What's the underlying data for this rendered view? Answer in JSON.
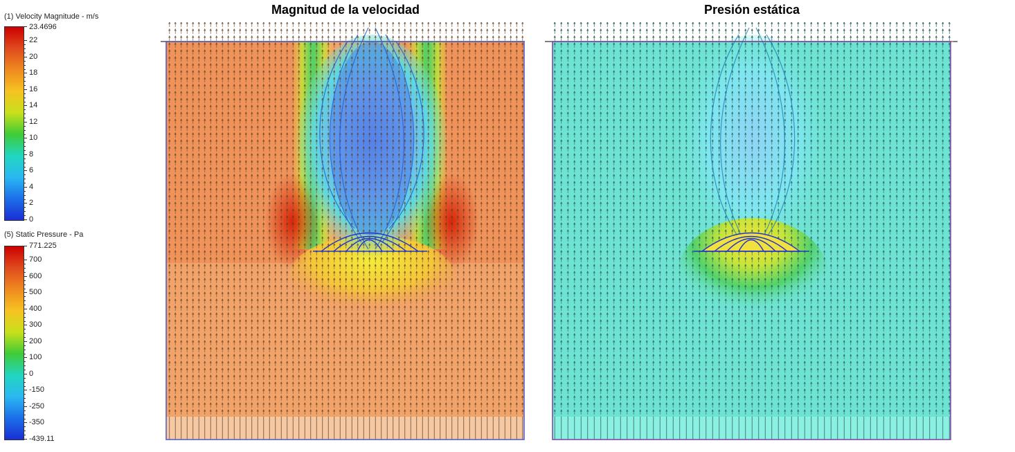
{
  "legends": [
    {
      "title": "(1) Velocity Magnitude - m/s",
      "max_label": "23.4696",
      "labels": [
        "22",
        "20",
        "18",
        "16",
        "14",
        "12",
        "10",
        "8",
        "6",
        "4",
        "2",
        "0"
      ],
      "gradient": [
        "#cc0000",
        "#e04b1e",
        "#ef8a1f",
        "#f6c322",
        "#c8e01c",
        "#3fcb36",
        "#22d6c0",
        "#2ab8f2",
        "#1c6fe8",
        "#1a2fd4"
      ]
    },
    {
      "title": "(5) Static Pressure - Pa",
      "max_label": "771.225",
      "labels": [
        "700",
        "600",
        "500",
        "400",
        "300",
        "200",
        "100",
        "0",
        "-150",
        "-250",
        "-350",
        "-439.11"
      ],
      "gradient": [
        "#cc0000",
        "#e04b1e",
        "#ef8a1f",
        "#f6c322",
        "#c8e01c",
        "#3fcb36",
        "#22d6c0",
        "#2ab8f2",
        "#1c6fe8",
        "#1a2fd4"
      ]
    }
  ],
  "panels": [
    {
      "title": "Magnitud de la velocidad",
      "frame_color": "#4a56c8"
    },
    {
      "title": "Presión estática",
      "frame_color": "#7a3fa0"
    }
  ]
}
